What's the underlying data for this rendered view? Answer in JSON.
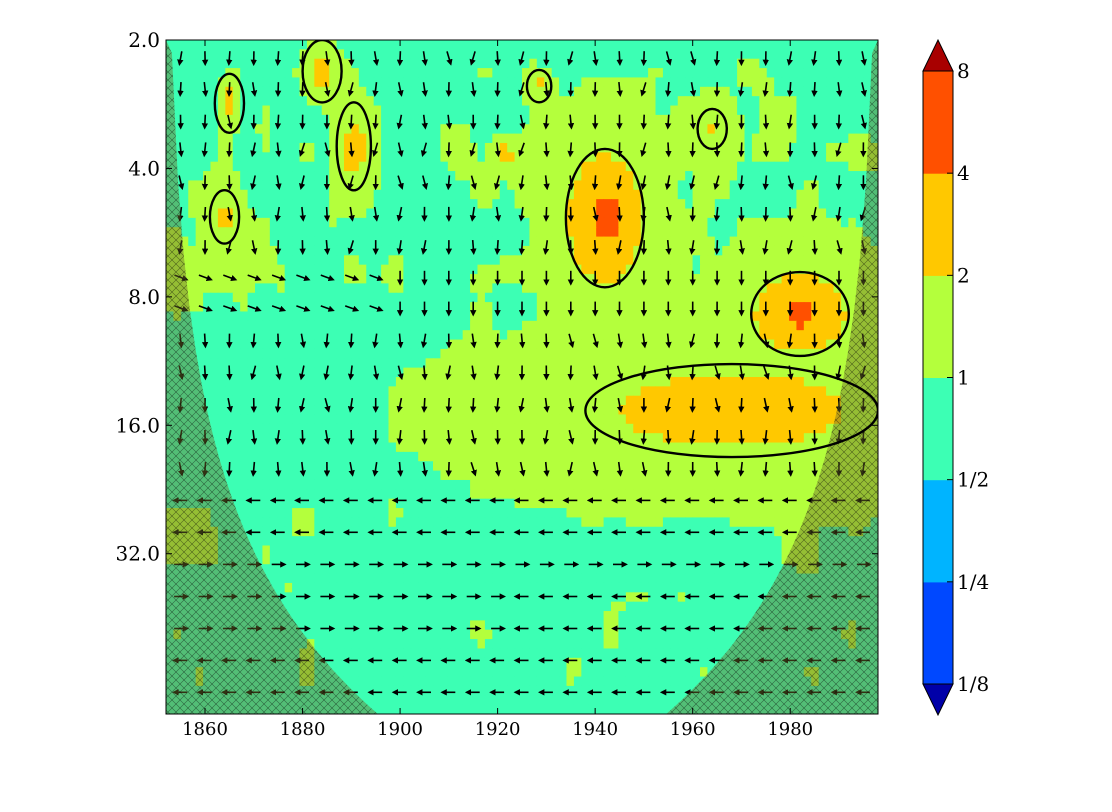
{
  "chart_data": {
    "type": "heatmap",
    "title": "",
    "xlabel": "",
    "ylabel": "",
    "x_range": [
      1852,
      1998
    ],
    "y_scale": "log2",
    "y_range": [
      2.0,
      76.0
    ],
    "y_inverted": true,
    "x_ticks": [
      {
        "value": 1860,
        "label": "1860"
      },
      {
        "value": 1880,
        "label": "1880"
      },
      {
        "value": 1900,
        "label": "1900"
      },
      {
        "value": 1920,
        "label": "1920"
      },
      {
        "value": 1940,
        "label": "1940"
      },
      {
        "value": 1960,
        "label": "1960"
      },
      {
        "value": 1980,
        "label": "1980"
      }
    ],
    "y_ticks": [
      {
        "value": 2.0,
        "label": "2.0"
      },
      {
        "value": 4.0,
        "label": "4.0"
      },
      {
        "value": 8.0,
        "label": "8.0"
      },
      {
        "value": 16.0,
        "label": "16.0"
      },
      {
        "value": 32.0,
        "label": "32.0"
      }
    ],
    "colorbar": {
      "scale": "log2",
      "extend": "both",
      "levels": [
        0.125,
        0.25,
        0.5,
        1,
        2,
        4,
        8
      ],
      "tick_labels": [
        "1/8",
        "1/4",
        "1/2",
        "1",
        "2",
        "4",
        "8"
      ],
      "colors": [
        "#0000a8",
        "#0048ff",
        "#00b4ff",
        "#3cffb4",
        "#b4ff3c",
        "#ffc800",
        "#ff5000",
        "#a80000"
      ]
    },
    "significant_regions": [
      {
        "x": [
          1862,
          1868
        ],
        "y": [
          2.4,
          3.3
        ],
        "peak": 2.5
      },
      {
        "x": [
          1880,
          1888
        ],
        "y": [
          2.0,
          2.8
        ],
        "peak": 2.6
      },
      {
        "x": [
          1887,
          1894
        ],
        "y": [
          2.8,
          4.5
        ],
        "peak": 2.4
      },
      {
        "x": [
          1926,
          1931
        ],
        "y": [
          2.35,
          2.8
        ],
        "peak": 2.2
      },
      {
        "x": [
          1861,
          1867
        ],
        "y": [
          4.5,
          6.0
        ],
        "peak": 2.3
      },
      {
        "x": [
          1934,
          1950
        ],
        "y": [
          3.6,
          7.6
        ],
        "peak": 4.6
      },
      {
        "x": [
          1961,
          1967
        ],
        "y": [
          2.9,
          3.6
        ],
        "peak": 2.2
      },
      {
        "x": [
          1972,
          1992
        ],
        "y": [
          7.0,
          11.0
        ],
        "peak": 4.5
      },
      {
        "x": [
          1938,
          1998
        ],
        "y": [
          11.5,
          19.0
        ],
        "peak": 3.2
      }
    ],
    "phase_arrows_predominant": "down",
    "cone_of_influence": true,
    "grid": false,
    "legend": "none"
  }
}
